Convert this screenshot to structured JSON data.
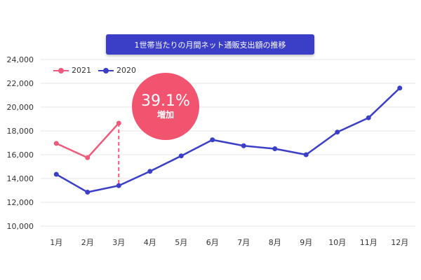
{
  "title": "1世帯当たりの月間ネット通販支出額の推移",
  "annotation": {
    "value": "39.1%",
    "label": "増加",
    "color": "#f25470"
  },
  "chart_data": {
    "type": "line",
    "x": [
      "1月",
      "2月",
      "3月",
      "4月",
      "5月",
      "6月",
      "7月",
      "8月",
      "9月",
      "10月",
      "11月",
      "12月"
    ],
    "ylim": [
      10000,
      24000
    ],
    "yticks": [
      "10,000",
      "12,000",
      "14,000",
      "16,000",
      "18,000",
      "20,000",
      "22,000",
      "24,000"
    ],
    "grid": true,
    "legend_position": "top-left",
    "series": [
      {
        "name": "2021",
        "color": "#ee5a79",
        "values": [
          16950,
          15750,
          18650,
          null,
          null,
          null,
          null,
          null,
          null,
          null,
          null,
          null
        ]
      },
      {
        "name": "2020",
        "color": "#3b3fc8",
        "values": [
          14350,
          12850,
          13400,
          14600,
          15900,
          17250,
          16750,
          16500,
          16000,
          17900,
          19100,
          21600
        ]
      }
    ]
  }
}
